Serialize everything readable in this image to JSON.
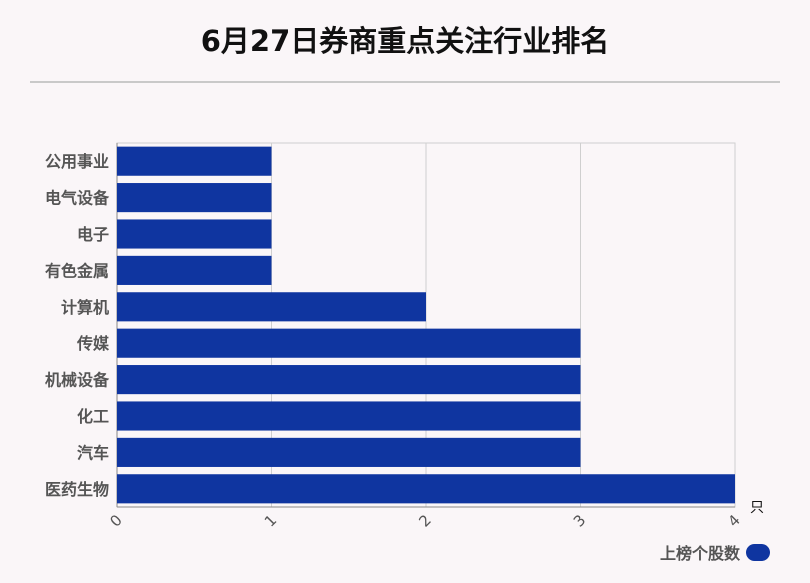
{
  "title": "6月27日券商重点关注行业排名",
  "chart_data": {
    "type": "bar",
    "orientation": "horizontal",
    "categories": [
      "公用事业",
      "电气设备",
      "电子",
      "有色金属",
      "计算机",
      "传媒",
      "机械设备",
      "化工",
      "汽车",
      "医药生物"
    ],
    "series": [
      {
        "name": "上榜个股数",
        "values": [
          1,
          1,
          1,
          1,
          2,
          3,
          3,
          3,
          3,
          4
        ],
        "color": "#0f35a0"
      }
    ],
    "xlim": [
      0,
      4
    ],
    "xticks": [
      "0",
      "1",
      "2",
      "3",
      "4"
    ],
    "x_unit": "只",
    "grid": true,
    "legend": "bottom-right"
  }
}
